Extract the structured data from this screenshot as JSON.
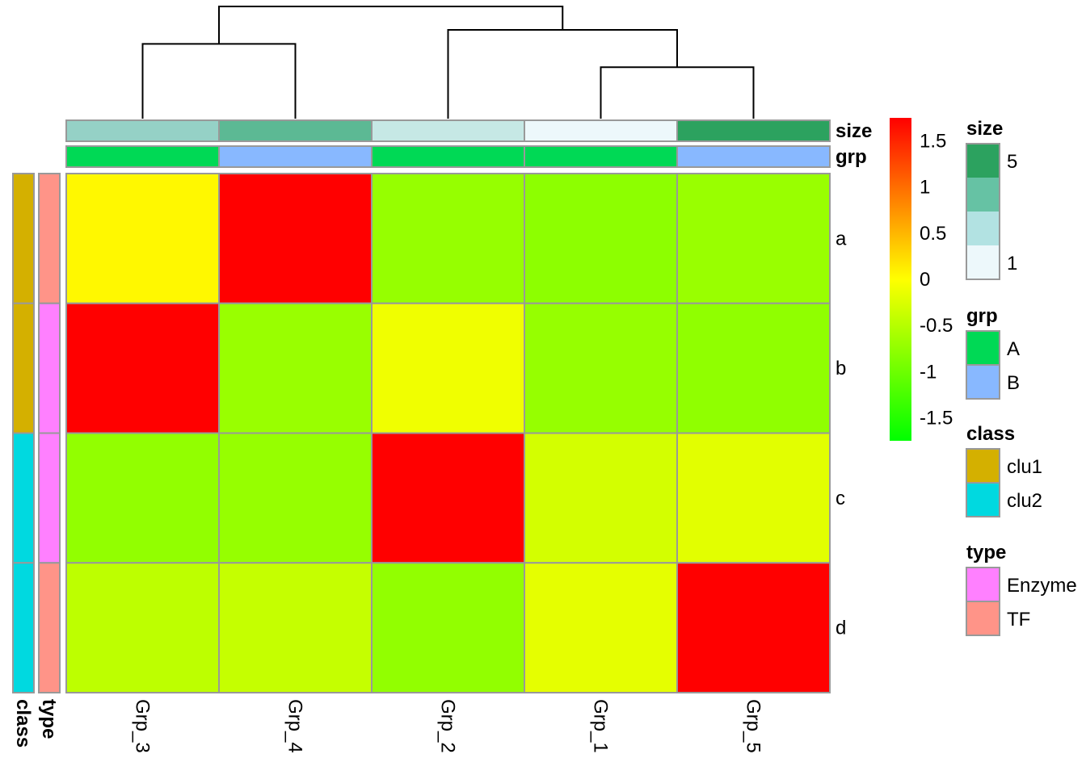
{
  "chart_data": {
    "type": "heatmap",
    "columns": [
      "Grp_3",
      "Grp_4",
      "Grp_2",
      "Grp_1",
      "Grp_5"
    ],
    "rows": [
      "a",
      "b",
      "c",
      "d"
    ],
    "values": [
      [
        0.05,
        1.75,
        -0.72,
        -0.78,
        -0.7
      ],
      [
        1.75,
        -0.7,
        -0.1,
        -0.72,
        -0.76
      ],
      [
        -0.75,
        -0.72,
        1.75,
        -0.3,
        -0.2
      ],
      [
        -0.45,
        -0.4,
        -0.75,
        -0.18,
        1.75
      ]
    ],
    "color_scale": {
      "ticks": [
        "1.5",
        "1",
        "0.5",
        "0",
        "-0.5",
        "-1",
        "-1.5"
      ],
      "tick_values": [
        1.5,
        1,
        0.5,
        0,
        -0.5,
        -1,
        -1.5
      ],
      "range": [
        -1.75,
        1.75
      ],
      "colors": [
        "#00ff00",
        "#ffff00",
        "#ff0000"
      ]
    },
    "column_annotations": [
      {
        "name": "size",
        "values": [
          3,
          4,
          2,
          1,
          5
        ]
      },
      {
        "name": "grp",
        "values": [
          "A",
          "B",
          "A",
          "A",
          "B"
        ]
      }
    ],
    "row_annotations": [
      {
        "name": "class",
        "values": [
          "clu1",
          "clu1",
          "clu2",
          "clu2"
        ]
      },
      {
        "name": "type",
        "values": [
          "TF",
          "Enzyme",
          "Enzyme",
          "TF"
        ]
      }
    ],
    "column_dendrogram": {
      "merges": [
        {
          "left": "Grp_1",
          "right": "Grp_5",
          "height": 1.1
        },
        {
          "left": "Grp_2",
          "right": "cluster_1",
          "height": 1.9
        },
        {
          "left": "Grp_3",
          "right": "Grp_4",
          "height": 1.6
        },
        {
          "left": "cluster_3",
          "right": "cluster_2",
          "height": 2.4
        }
      ]
    }
  },
  "legends": {
    "size": {
      "title": "size",
      "labels": [
        "5",
        "1"
      ],
      "colors": [
        "#2ca25f",
        "#66c2a4",
        "#b2e2e2",
        "#edf8fb"
      ]
    },
    "grp": {
      "title": "grp",
      "items": [
        {
          "label": "A",
          "color": "#00d955"
        },
        {
          "label": "B",
          "color": "#88b8ff"
        }
      ]
    },
    "class": {
      "title": "class",
      "items": [
        {
          "label": "clu1",
          "color": "#d4b000"
        },
        {
          "label": "clu2",
          "color": "#00d9e0"
        }
      ]
    },
    "type": {
      "title": "type",
      "items": [
        {
          "label": "Enzyme",
          "color": "#ff80ff"
        },
        {
          "label": "TF",
          "color": "#ff9488"
        }
      ]
    }
  },
  "size_colors": {
    "1": "#edf8fb",
    "2": "#c6e8e5",
    "3": "#95d1c6",
    "4": "#5cb994",
    "5": "#2ca25f"
  }
}
